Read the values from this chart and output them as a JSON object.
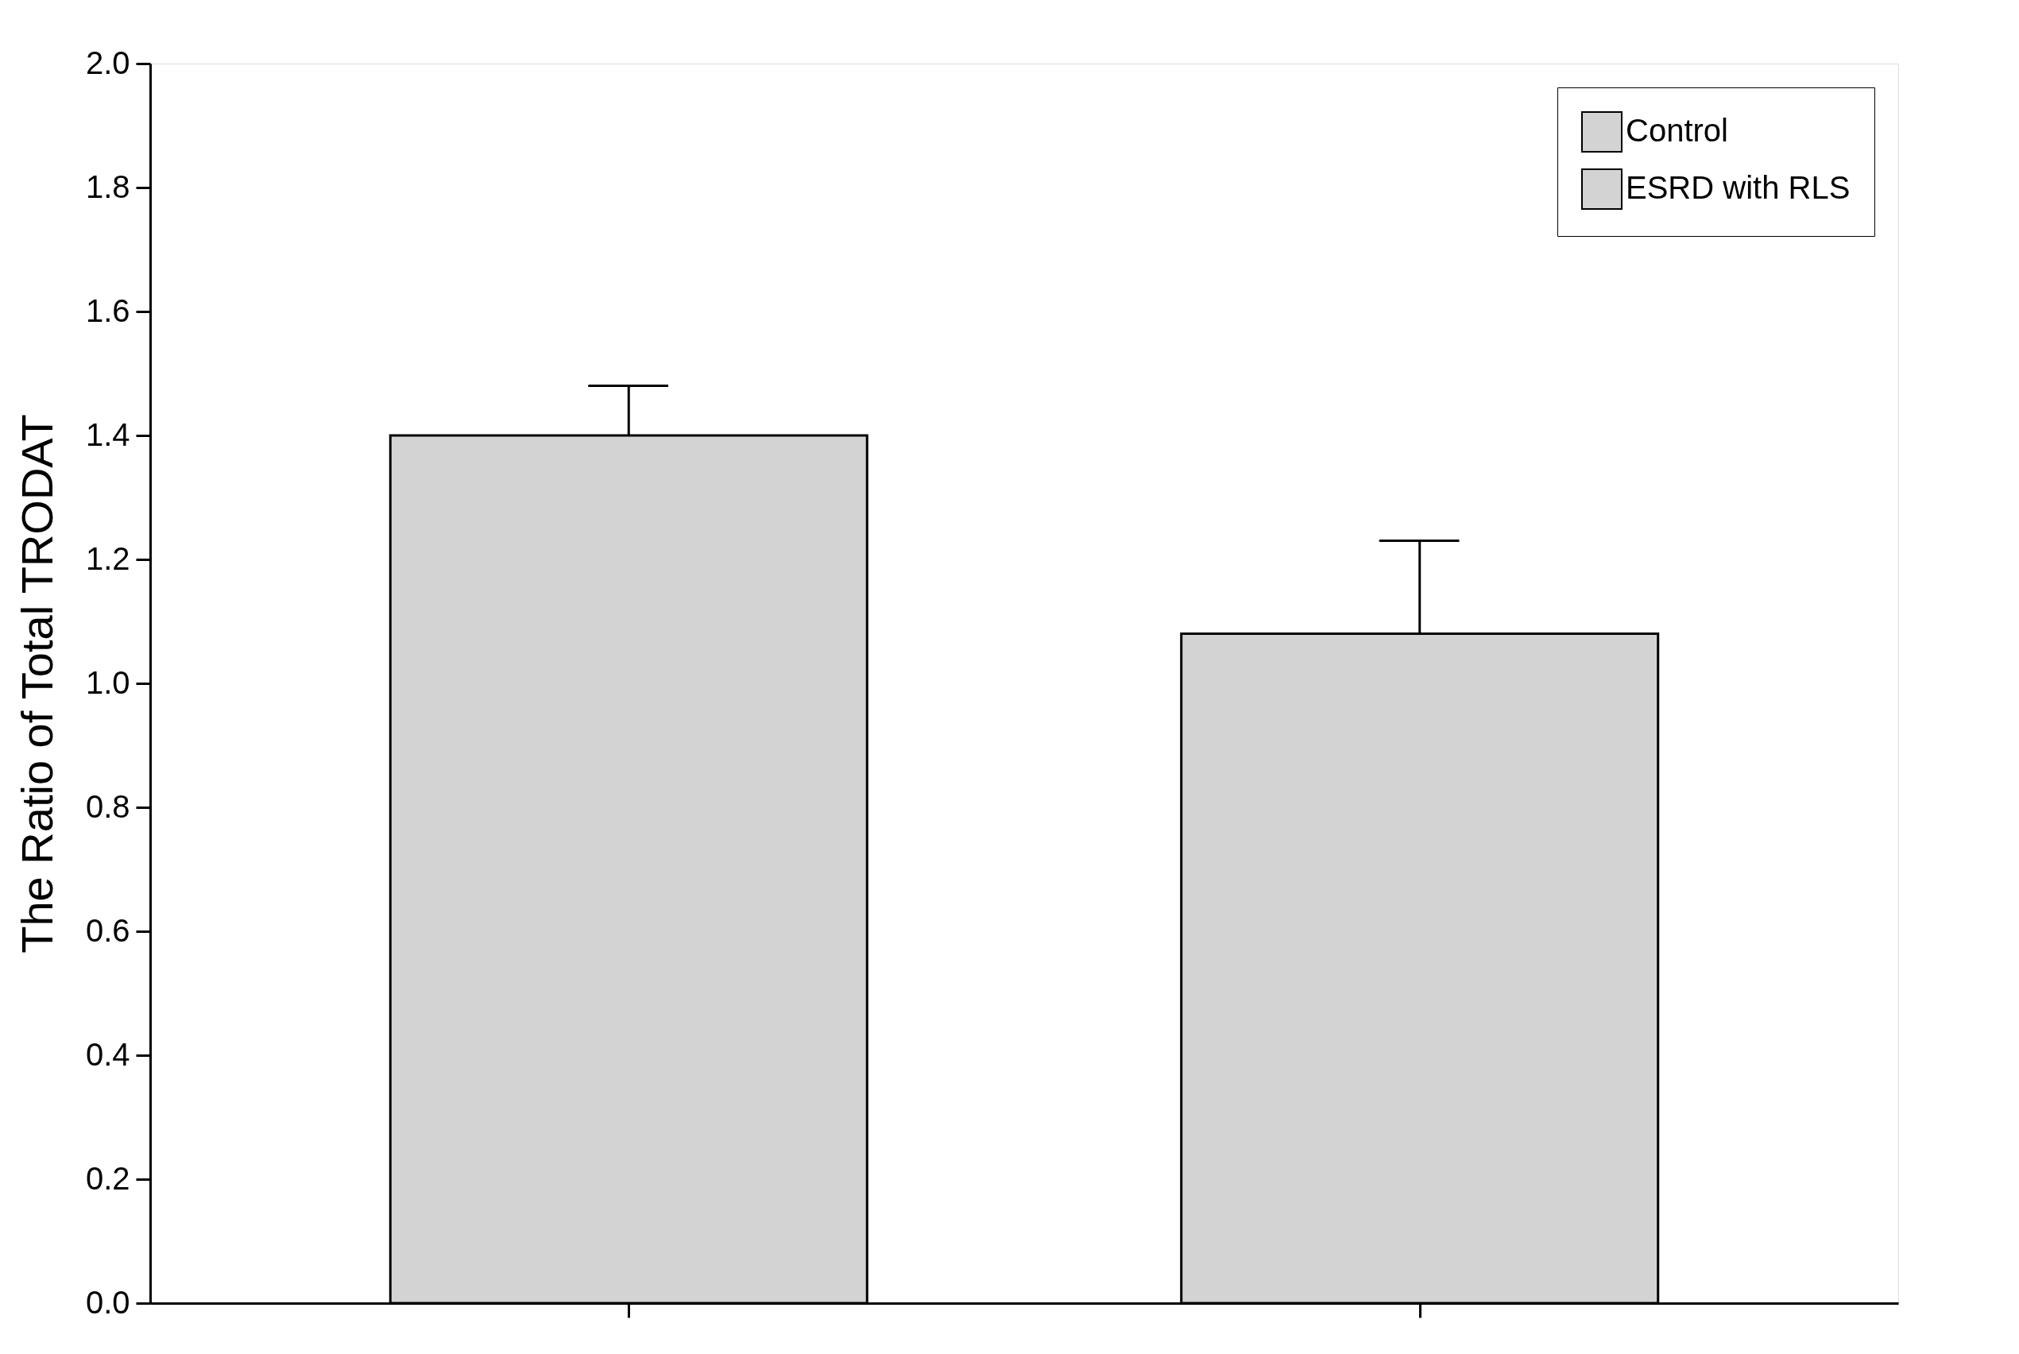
{
  "chart_data": {
    "type": "bar",
    "ylabel": "The Ratio of Total TRODAT",
    "categories": [
      null,
      null
    ],
    "series": [
      {
        "name": "Control",
        "color": "#d3d3d3",
        "values": [
          1.4,
          null
        ],
        "errors": [
          [
            1.4,
            1.48
          ],
          null
        ]
      },
      {
        "name": "ESRD with RLS",
        "color": "#d3d3d3",
        "values": [
          null,
          1.08
        ],
        "errors": [
          null,
          [
            1.08,
            1.23
          ]
        ]
      }
    ],
    "ylim": [
      0,
      2.0
    ],
    "yticks": [
      {
        "value": 0,
        "label": "0.0"
      },
      {
        "value": 0.2,
        "label": "0.2"
      },
      {
        "value": 0.4,
        "label": "0.4"
      },
      {
        "value": 0.6,
        "label": "0.6"
      },
      {
        "value": 0.8,
        "label": "0.8"
      },
      {
        "value": 1.0,
        "label": "1.0"
      },
      {
        "value": 1.2,
        "label": "1.2"
      },
      {
        "value": 1.4,
        "label": "1.4"
      },
      {
        "value": 1.6,
        "label": "1.6"
      },
      {
        "value": 1.8,
        "label": "1.8"
      },
      {
        "value": 2.0,
        "label": "2.0"
      }
    ],
    "tick_labels": "y",
    "grid": false,
    "legend": "top right"
  }
}
